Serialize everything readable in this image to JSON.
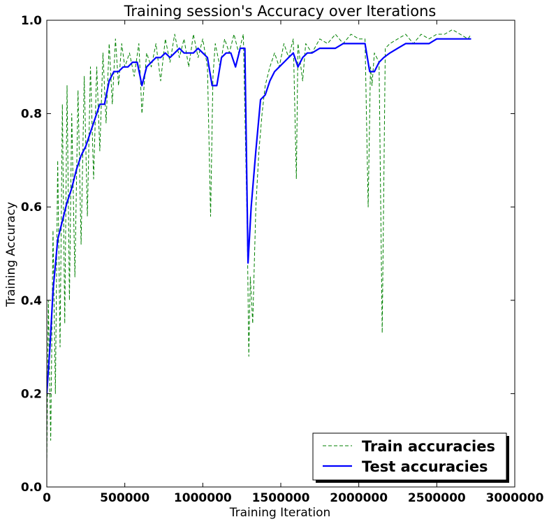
{
  "chart_data": {
    "type": "line",
    "title": "Training session's Accuracy over Iterations",
    "xlabel": "Training Iteration",
    "ylabel": "Training Accuracy",
    "xlim": [
      0,
      3000000
    ],
    "ylim": [
      0.0,
      1.0
    ],
    "xticks": [
      0,
      500000,
      1000000,
      1500000,
      2000000,
      2500000,
      3000000
    ],
    "xtick_labels": [
      "0",
      "500000",
      "1000000",
      "1500000",
      "2000000",
      "2500000",
      "3000000"
    ],
    "yticks": [
      0.0,
      0.2,
      0.4,
      0.6,
      0.8,
      1.0
    ],
    "ytick_labels": [
      "0.0",
      "0.2",
      "0.4",
      "0.6",
      "0.8",
      "1.0"
    ],
    "grid": false,
    "legend": "lower-right",
    "series": [
      {
        "name": "Train accuracies",
        "style": "dashed",
        "color": "#008000",
        "x": [
          0,
          10000,
          25000,
          40000,
          55000,
          70000,
          85000,
          100000,
          115000,
          130000,
          145000,
          160000,
          180000,
          200000,
          220000,
          240000,
          260000,
          280000,
          300000,
          320000,
          340000,
          360000,
          380000,
          400000,
          420000,
          440000,
          460000,
          480000,
          500000,
          530000,
          560000,
          590000,
          610000,
          640000,
          670000,
          700000,
          730000,
          760000,
          790000,
          820000,
          850000,
          880000,
          910000,
          940000,
          970000,
          1000000,
          1030000,
          1050000,
          1065000,
          1080000,
          1110000,
          1140000,
          1170000,
          1200000,
          1230000,
          1260000,
          1285000,
          1295000,
          1305000,
          1320000,
          1340000,
          1360000,
          1380000,
          1400000,
          1430000,
          1460000,
          1490000,
          1520000,
          1550000,
          1580000,
          1600000,
          1610000,
          1640000,
          1660000,
          1700000,
          1750000,
          1800000,
          1850000,
          1900000,
          1950000,
          2000000,
          2040000,
          2060000,
          2075000,
          2085000,
          2100000,
          2130000,
          2150000,
          2170000,
          2200000,
          2250000,
          2300000,
          2350000,
          2400000,
          2450000,
          2500000,
          2550000,
          2600000,
          2650000,
          2700000,
          2720000
        ],
        "y": [
          0.05,
          0.4,
          0.1,
          0.55,
          0.2,
          0.7,
          0.3,
          0.82,
          0.35,
          0.86,
          0.4,
          0.8,
          0.45,
          0.85,
          0.52,
          0.88,
          0.58,
          0.9,
          0.66,
          0.9,
          0.72,
          0.93,
          0.78,
          0.95,
          0.82,
          0.96,
          0.86,
          0.95,
          0.9,
          0.93,
          0.88,
          0.95,
          0.8,
          0.93,
          0.9,
          0.95,
          0.87,
          0.96,
          0.91,
          0.97,
          0.92,
          0.96,
          0.9,
          0.97,
          0.92,
          0.96,
          0.9,
          0.58,
          0.88,
          0.95,
          0.9,
          0.96,
          0.93,
          0.97,
          0.93,
          0.97,
          0.55,
          0.28,
          0.45,
          0.35,
          0.6,
          0.72,
          0.8,
          0.86,
          0.9,
          0.93,
          0.9,
          0.95,
          0.92,
          0.96,
          0.66,
          0.95,
          0.87,
          0.95,
          0.93,
          0.96,
          0.95,
          0.97,
          0.95,
          0.97,
          0.96,
          0.96,
          0.6,
          0.9,
          0.86,
          0.93,
          0.91,
          0.33,
          0.94,
          0.95,
          0.96,
          0.97,
          0.95,
          0.97,
          0.96,
          0.97,
          0.97,
          0.98,
          0.97,
          0.96,
          0.97
        ]
      },
      {
        "name": "Test accuracies",
        "style": "solid",
        "color": "#0000ff",
        "x": [
          0,
          20000,
          40000,
          70000,
          100000,
          130000,
          160000,
          190000,
          220000,
          250000,
          280000,
          310000,
          340000,
          370000,
          400000,
          430000,
          460000,
          490000,
          520000,
          550000,
          580000,
          610000,
          640000,
          670000,
          700000,
          730000,
          760000,
          790000,
          820000,
          850000,
          880000,
          910000,
          940000,
          970000,
          1000000,
          1030000,
          1060000,
          1090000,
          1120000,
          1150000,
          1180000,
          1210000,
          1240000,
          1270000,
          1290000,
          1310000,
          1340000,
          1370000,
          1400000,
          1430000,
          1460000,
          1490000,
          1520000,
          1550000,
          1580000,
          1610000,
          1640000,
          1670000,
          1700000,
          1750000,
          1800000,
          1850000,
          1900000,
          1950000,
          2000000,
          2040000,
          2070000,
          2100000,
          2130000,
          2160000,
          2200000,
          2250000,
          2300000,
          2350000,
          2400000,
          2450000,
          2500000,
          2550000,
          2600000,
          2650000,
          2720000
        ],
        "y": [
          0.2,
          0.3,
          0.42,
          0.53,
          0.57,
          0.61,
          0.64,
          0.68,
          0.71,
          0.73,
          0.76,
          0.79,
          0.82,
          0.82,
          0.87,
          0.89,
          0.89,
          0.9,
          0.9,
          0.91,
          0.91,
          0.86,
          0.9,
          0.91,
          0.92,
          0.92,
          0.93,
          0.92,
          0.93,
          0.94,
          0.93,
          0.93,
          0.93,
          0.94,
          0.93,
          0.92,
          0.86,
          0.86,
          0.92,
          0.93,
          0.93,
          0.9,
          0.94,
          0.94,
          0.48,
          0.6,
          0.72,
          0.83,
          0.84,
          0.87,
          0.89,
          0.9,
          0.91,
          0.92,
          0.93,
          0.9,
          0.92,
          0.93,
          0.93,
          0.94,
          0.94,
          0.94,
          0.95,
          0.95,
          0.95,
          0.95,
          0.89,
          0.89,
          0.91,
          0.92,
          0.93,
          0.94,
          0.95,
          0.95,
          0.95,
          0.95,
          0.96,
          0.96,
          0.96,
          0.96,
          0.96
        ]
      }
    ]
  }
}
